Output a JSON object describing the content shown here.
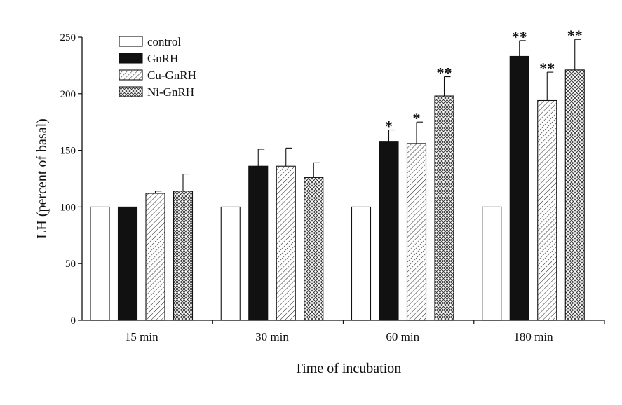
{
  "chart_data": {
    "type": "bar",
    "title": "",
    "xlabel": "Time of incubation",
    "ylabel": "LH (percent of basal)",
    "ylim": [
      0,
      250
    ],
    "yticks": [
      0,
      50,
      100,
      150,
      200,
      250
    ],
    "categories": [
      "15 min",
      "30 min",
      "60 min",
      "180 min"
    ],
    "legend_position": "top-left",
    "series": [
      {
        "name": "control",
        "pattern": "open",
        "values": [
          100,
          100,
          100,
          100
        ],
        "errors": [
          0,
          0,
          0,
          0
        ],
        "significance": [
          "",
          "",
          "",
          ""
        ]
      },
      {
        "name": "GnRH",
        "pattern": "solid",
        "values": [
          100,
          136,
          158,
          233
        ],
        "errors": [
          0,
          15,
          10,
          14
        ],
        "significance": [
          "",
          "",
          "*",
          "**"
        ]
      },
      {
        "name": "Cu-GnRH",
        "pattern": "diagonal",
        "values": [
          112,
          136,
          156,
          194
        ],
        "errors": [
          2,
          16,
          19,
          25
        ],
        "significance": [
          "",
          "",
          "*",
          "**"
        ]
      },
      {
        "name": "Ni-GnRH",
        "pattern": "crosshatch",
        "values": [
          114,
          126,
          198,
          221
        ],
        "errors": [
          15,
          13,
          17,
          27
        ],
        "significance": [
          "",
          "",
          "**",
          "**"
        ]
      }
    ],
    "colors": {
      "ink": "#111111",
      "fill_open": "#ffffff"
    }
  }
}
